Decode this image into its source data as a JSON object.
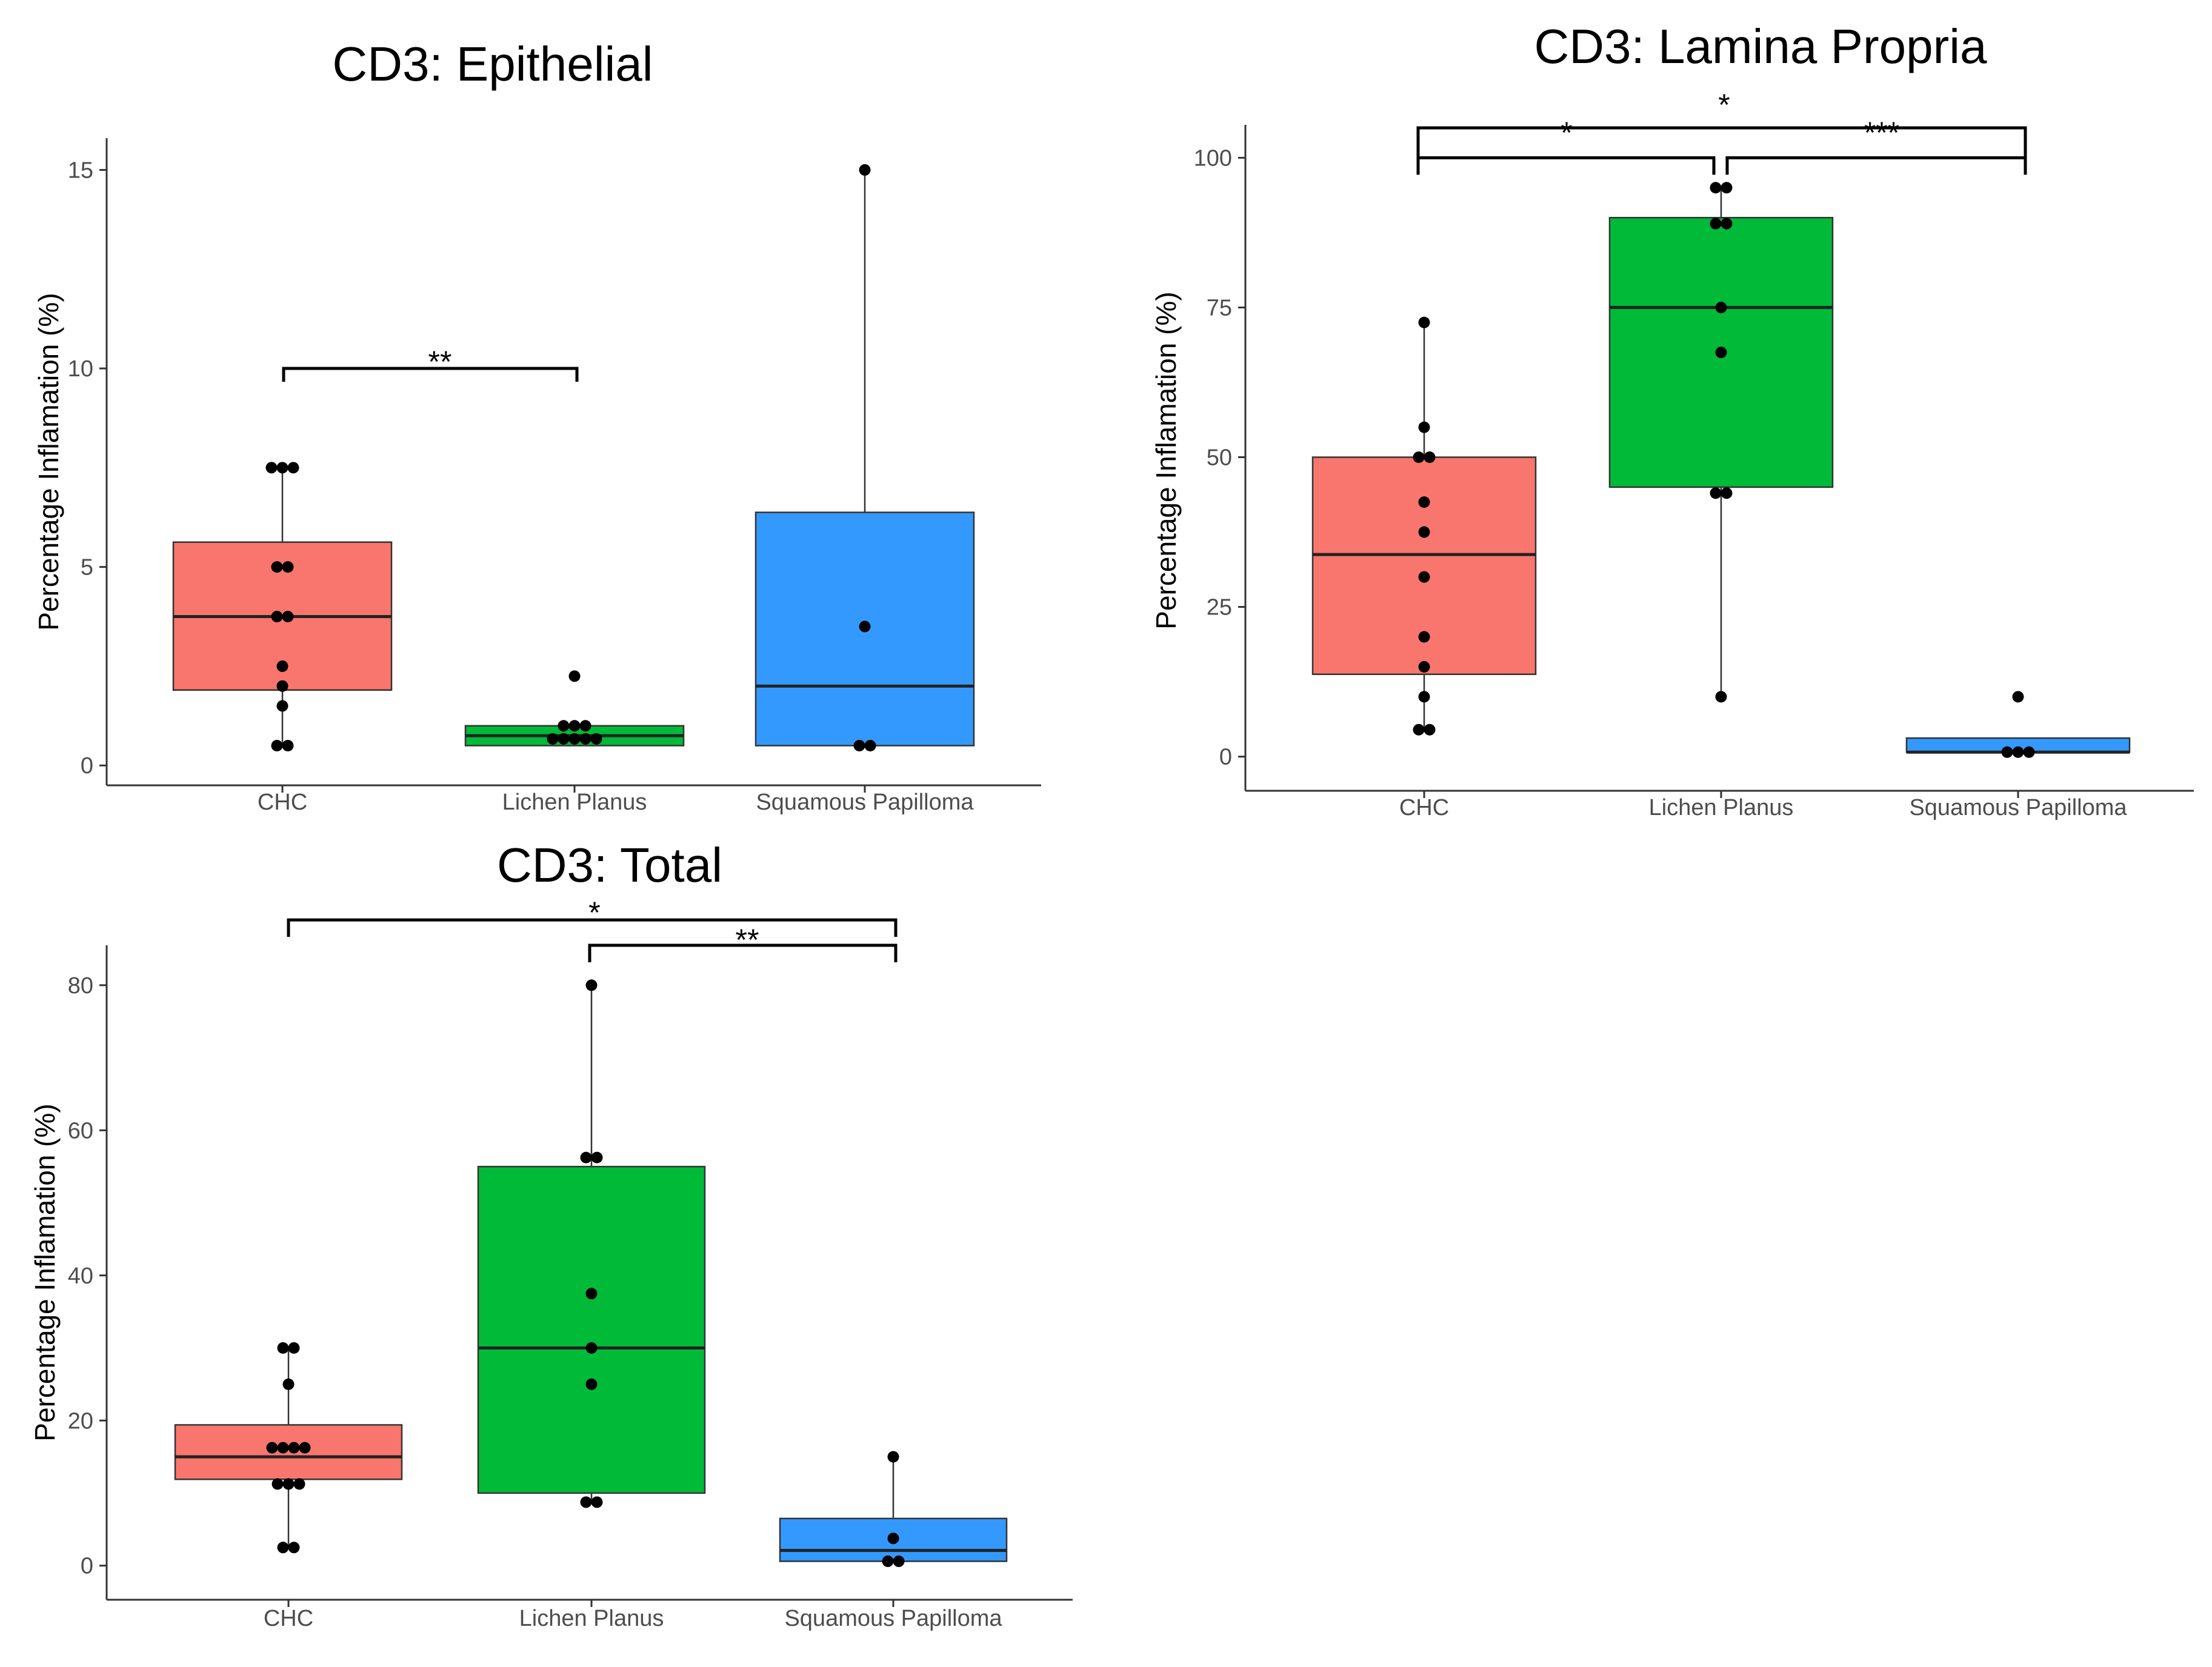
{
  "chart_data": [
    {
      "type": "boxplot",
      "title": "CD3: Epithelial",
      "ylabel": "Percentage Inflamation (%)",
      "xlabel": "",
      "ylim": [
        -0.5,
        15.8
      ],
      "yticks": [
        0,
        5,
        10,
        15
      ],
      "categories": [
        "CHC",
        "Lichen Planus",
        "Squamous Papilloma"
      ],
      "colors": [
        "#F8766D",
        "#00BA38",
        "#3399FF"
      ],
      "boxes": [
        {
          "category": "CHC",
          "q1": 1.9,
          "median": 3.75,
          "q3": 5.625,
          "whisker_low": 0.5,
          "whisker_high": 7.5
        },
        {
          "category": "Lichen Planus",
          "q1": 0.5,
          "median": 0.75,
          "q3": 1.0,
          "whisker_low": 0.5,
          "whisker_high": 1.0
        },
        {
          "category": "Squamous Papilloma",
          "q1": 0.5,
          "median": 2.0,
          "q3": 6.375,
          "whisker_low": 0.5,
          "whisker_high": 15.0
        }
      ],
      "points": [
        {
          "category": "CHC",
          "values": [
            7.5,
            7.5,
            7.5,
            5,
            5,
            3.75,
            3.75,
            2.5,
            2,
            1.5,
            0.5,
            0.5
          ]
        },
        {
          "category": "Lichen Planus",
          "values": [
            2.25,
            1,
            1,
            1,
            0.67,
            0.67,
            0.67,
            0.67,
            0.67
          ]
        },
        {
          "category": "Squamous Papilloma",
          "values": [
            15,
            3.5,
            0.5,
            0.5
          ]
        }
      ],
      "significance": [
        {
          "from": "CHC",
          "to": "Lichen Planus",
          "y": 10,
          "label": "**"
        }
      ]
    },
    {
      "type": "boxplot",
      "title": "CD3: Lamina Propria",
      "ylabel": "Percentage Inflamation (%)",
      "xlabel": "",
      "ylim": [
        -5.7,
        105.5
      ],
      "yticks": [
        0,
        25,
        50,
        75,
        100
      ],
      "categories": [
        "CHC",
        "Lichen Planus",
        "Squamous Papilloma"
      ],
      "colors": [
        "#F8766D",
        "#00BA38",
        "#3399FF"
      ],
      "boxes": [
        {
          "category": "CHC",
          "q1": 13.75,
          "median": 33.75,
          "q3": 50,
          "whisker_low": 4.5,
          "whisker_high": 72.5
        },
        {
          "category": "Lichen Planus",
          "q1": 45,
          "median": 75,
          "q3": 90,
          "whisker_low": 10,
          "whisker_high": 95
        },
        {
          "category": "Squamous Papilloma",
          "q1": 0.75,
          "median": 0.75,
          "q3": 3.1,
          "whisker_low": 0.75,
          "whisker_high": 3.1
        }
      ],
      "points": [
        {
          "category": "CHC",
          "values": [
            72.5,
            55,
            50,
            50,
            42.5,
            37.5,
            30,
            20,
            15,
            10,
            4.5,
            4.5
          ]
        },
        {
          "category": "Lichen Planus",
          "values": [
            95,
            95,
            89,
            89,
            75,
            67.5,
            44,
            44,
            10
          ]
        },
        {
          "category": "Squamous Papilloma",
          "values": [
            10,
            0.75,
            0.75,
            0.75
          ]
        }
      ],
      "significance": [
        {
          "from": "CHC",
          "to": "Lichen Planus",
          "y": 100,
          "label": "*"
        },
        {
          "from": "Lichen Planus",
          "to": "Squamous Papilloma",
          "y": 100,
          "label": "***"
        },
        {
          "from": "CHC",
          "to": "Squamous Papilloma",
          "y": 105,
          "label": "*"
        }
      ]
    },
    {
      "type": "boxplot",
      "title": "CD3: Total",
      "ylabel": "Percentage Inflamation (%)",
      "xlabel": "",
      "ylim": [
        -4.7,
        85.5
      ],
      "yticks": [
        0,
        20,
        40,
        60,
        80
      ],
      "categories": [
        "CHC",
        "Lichen Planus",
        "Squamous Papilloma"
      ],
      "colors": [
        "#F8766D",
        "#00BA38",
        "#3399FF"
      ],
      "boxes": [
        {
          "category": "CHC",
          "q1": 11.9,
          "median": 15,
          "q3": 19.4,
          "whisker_low": 2.5,
          "whisker_high": 30
        },
        {
          "category": "Lichen Planus",
          "q1": 10,
          "median": 30,
          "q3": 55,
          "whisker_low": 9,
          "whisker_high": 80
        },
        {
          "category": "Squamous Papilloma",
          "q1": 0.6,
          "median": 2.1,
          "q3": 6.5,
          "whisker_low": 0.6,
          "whisker_high": 15
        }
      ],
      "points": [
        {
          "category": "CHC",
          "values": [
            30,
            30,
            25,
            16.25,
            16.25,
            16.25,
            16.25,
            11.25,
            11.25,
            11.25,
            2.5,
            2.5
          ]
        },
        {
          "category": "Lichen Planus",
          "values": [
            80,
            56.25,
            56.25,
            37.5,
            30,
            25,
            8.75,
            8.75
          ]
        },
        {
          "category": "Squamous Papilloma",
          "values": [
            15,
            3.75,
            0.6,
            0.6
          ]
        }
      ],
      "significance": [
        {
          "from": "Lichen Planus",
          "to": "Squamous Papilloma",
          "y": 85.5,
          "label": "**"
        },
        {
          "from": "CHC",
          "to": "Squamous Papilloma",
          "y": 89,
          "label": "*"
        }
      ]
    }
  ]
}
